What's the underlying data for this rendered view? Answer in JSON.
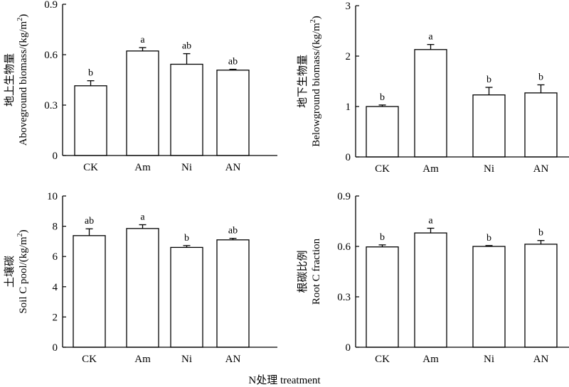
{
  "chart_data": [
    {
      "type": "bar",
      "categories": [
        "CK",
        "Am",
        "Ni",
        "AN"
      ],
      "values": [
        0.415,
        0.622,
        0.543,
        0.508
      ],
      "errors": [
        0.03,
        0.02,
        0.063,
        0.005
      ],
      "letters": [
        "b",
        "a",
        "ab",
        "ab"
      ],
      "ylabel_cn": "地上生物量",
      "ylabel_en": "Aboveground biomass/(kg/m",
      "ylim": [
        0,
        0.9
      ],
      "yticks": [
        "0",
        "0.3",
        "0.6",
        "0.9"
      ],
      "ytick_values": [
        0,
        0.3,
        0.6,
        0.9
      ]
    },
    {
      "type": "bar",
      "categories": [
        "CK",
        "Am",
        "Ni",
        "AN"
      ],
      "values": [
        1.0,
        2.13,
        1.23,
        1.27
      ],
      "errors": [
        0.03,
        0.1,
        0.15,
        0.16
      ],
      "letters": [
        "b",
        "a",
        "b",
        "b"
      ],
      "ylabel_cn": "地下生物量",
      "ylabel_en": "Belowground biomass/(kg/m",
      "ylim": [
        0,
        3
      ],
      "yticks": [
        "0",
        "1",
        "2",
        "3"
      ],
      "ytick_values": [
        0,
        1,
        2,
        3
      ]
    },
    {
      "type": "bar",
      "categories": [
        "CK",
        "Am",
        "Ni",
        "AN"
      ],
      "values": [
        7.38,
        7.85,
        6.6,
        7.1
      ],
      "errors": [
        0.45,
        0.25,
        0.12,
        0.1
      ],
      "letters": [
        "ab",
        "a",
        "b",
        "ab"
      ],
      "ylabel_cn": "土壤碳",
      "ylabel_en": "Soil C pool/(kg/m",
      "ylim": [
        0,
        10
      ],
      "yticks": [
        "0",
        "2",
        "4",
        "6",
        "8",
        "10"
      ],
      "ytick_values": [
        0,
        2,
        4,
        6,
        8,
        10
      ]
    },
    {
      "type": "bar",
      "categories": [
        "CK",
        "Am",
        "Ni",
        "AN"
      ],
      "values": [
        0.597,
        0.68,
        0.6,
        0.613
      ],
      "errors": [
        0.012,
        0.028,
        0.005,
        0.022
      ],
      "letters": [
        "b",
        "a",
        "b",
        "b"
      ],
      "ylabel_cn": "根碳比例",
      "ylabel_en": "Root C fraction",
      "ylim": [
        0,
        0.9
      ],
      "yticks": [
        "0",
        "0.3",
        "0.6",
        "0.9"
      ],
      "ytick_values": [
        0,
        0.3,
        0.6,
        0.9
      ]
    }
  ],
  "superscript": "2",
  "ylabel_suffix": ")",
  "xlabel": "N处理 treatment"
}
